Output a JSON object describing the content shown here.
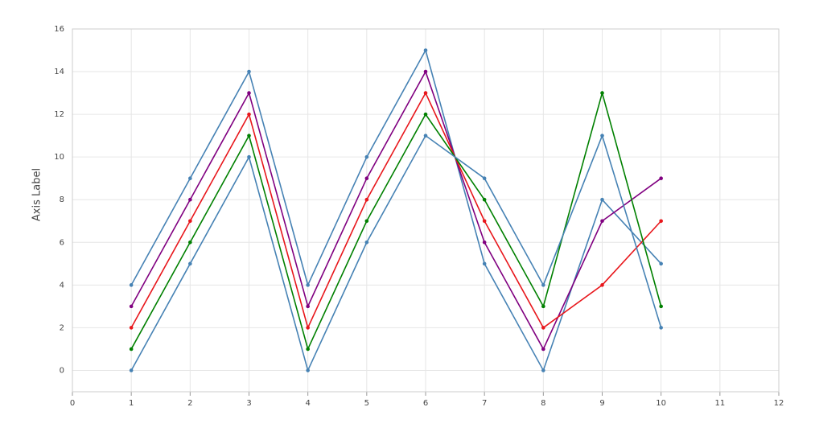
{
  "chart_data": {
    "type": "line",
    "y_label": "Axis Label",
    "xlim": [
      0,
      12
    ],
    "xticks": [
      0,
      1,
      2,
      3,
      4,
      5,
      6,
      7,
      8,
      9,
      10,
      11,
      12
    ],
    "ylim": [
      -1,
      16
    ],
    "yticks": [
      0,
      2,
      4,
      6,
      8,
      10,
      12,
      14,
      16
    ],
    "grid": true,
    "x": [
      1,
      2,
      3,
      4,
      5,
      6,
      7,
      8,
      9,
      10
    ],
    "series": [
      {
        "color": "#4682b4",
        "values": [
          4,
          9,
          14,
          4,
          10,
          15,
          5,
          0,
          8,
          5
        ]
      },
      {
        "color": "#800080",
        "values": [
          3,
          8,
          13,
          3,
          9,
          14,
          6,
          1,
          7,
          9
        ]
      },
      {
        "color": "#e8161b",
        "values": [
          2,
          7,
          12,
          2,
          8,
          13,
          7,
          2,
          4,
          7
        ]
      },
      {
        "color": "#008000",
        "values": [
          1,
          6,
          11,
          1,
          7,
          12,
          8,
          3,
          13,
          3
        ]
      },
      {
        "color": "#4682b4",
        "values": [
          0,
          5,
          10,
          0,
          6,
          11,
          9,
          4,
          11,
          2
        ]
      }
    ]
  }
}
